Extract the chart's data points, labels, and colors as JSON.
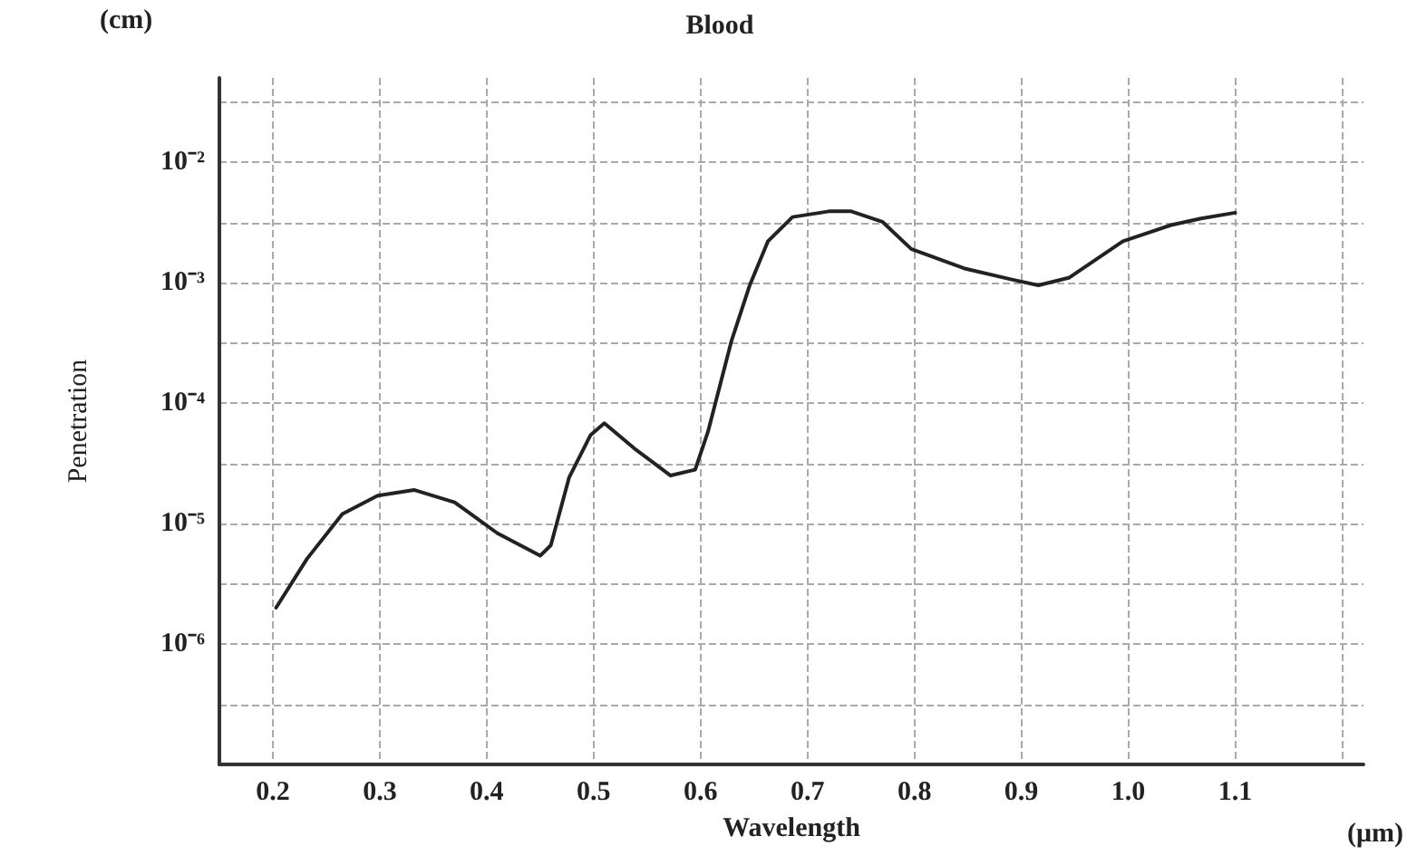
{
  "chart_data": {
    "type": "line",
    "title": "Blood",
    "xlabel": "Wavelength",
    "ylabel": "Penetration",
    "annotations": [
      "(cm)",
      "(μm)"
    ],
    "log": "y",
    "grid": true,
    "marker": "none",
    "line_style": "solid",
    "xlim": [
      0.15,
      1.22
    ],
    "xticks": [
      0.2,
      0.3,
      0.4,
      0.5,
      0.6,
      0.7,
      0.8,
      0.9,
      {
        "value": 1,
        "label": "1.0"
      },
      1.1,
      {
        "value": 1.2,
        "label": null
      }
    ],
    "ylim": [
      1e-07,
      0.05
    ],
    "yticks": [
      {
        "value": 3.16e-07,
        "label": null
      },
      {
        "value": 1e-06,
        "label": "10⁻⁶"
      },
      {
        "value": 3.16e-06,
        "label": null
      },
      {
        "value": 1e-05,
        "label": "10⁻⁵"
      },
      {
        "value": 3.16e-05,
        "label": null
      },
      {
        "value": 0.0001,
        "label": "10⁻⁴"
      },
      {
        "value": 0.000316,
        "label": null
      },
      {
        "value": 0.001,
        "label": "10⁻³"
      },
      {
        "value": 0.00316,
        "label": null
      },
      {
        "value": 0.01,
        "label": "10⁻²"
      },
      {
        "value": 0.0316,
        "label": null
      }
    ],
    "series": [
      {
        "color": "#222222",
        "x": [
          0.203,
          0.232,
          0.265,
          0.298,
          0.332,
          0.37,
          0.41,
          0.45,
          0.46,
          0.477,
          0.497,
          0.51,
          0.538,
          0.572,
          0.595,
          0.607,
          0.629,
          0.646,
          0.663,
          0.686,
          0.72,
          0.741,
          0.77,
          0.797,
          0.848,
          0.893,
          0.916,
          0.945,
          0.995,
          1.04,
          1.068,
          1.1
        ],
        "values": [
          2e-06,
          5.1e-06,
          1.2e-05,
          1.7e-05,
          1.9e-05,
          1.5e-05,
          8.3e-06,
          5.4e-06,
          6.6e-06,
          2.4e-05,
          5.4e-05,
          6.8e-05,
          4.2e-05,
          2.5e-05,
          2.8e-05,
          5.8e-05,
          0.00033,
          0.00095,
          0.0022,
          0.0035,
          0.0039,
          0.0039,
          0.0032,
          0.0019,
          0.0013,
          0.00105,
          0.00095,
          0.0011,
          0.0022,
          0.003,
          0.0034,
          0.0038
        ]
      }
    ]
  }
}
